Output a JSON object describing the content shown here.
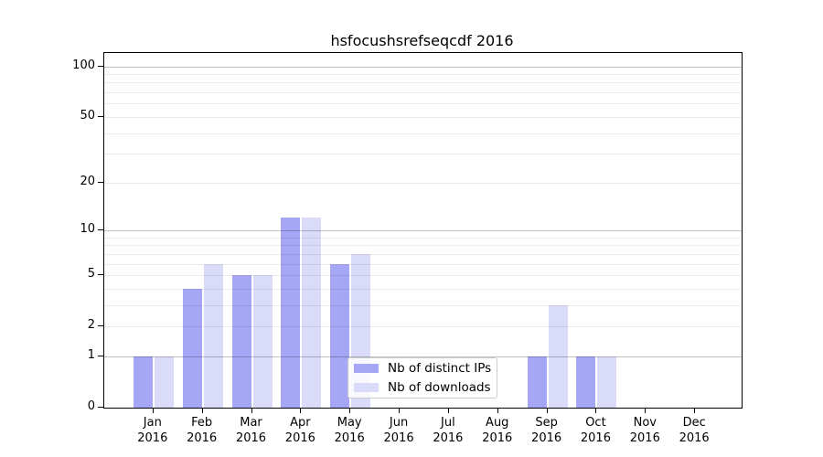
{
  "chart_data": {
    "type": "bar",
    "title": "hsfocushsrefseqcdf 2016",
    "year_label": "2016",
    "categories": [
      "Jan",
      "Feb",
      "Mar",
      "Apr",
      "May",
      "Jun",
      "Jul",
      "Aug",
      "Sep",
      "Oct",
      "Nov",
      "Dec"
    ],
    "series": [
      {
        "name": "Nb of distinct IPs",
        "color": "#a6a6f7",
        "values": [
          1,
          4,
          5,
          12,
          6,
          0,
          0,
          0,
          1,
          1,
          0,
          0
        ]
      },
      {
        "name": "Nb of downloads",
        "color": "#dadaf9",
        "values": [
          1,
          6,
          5,
          12,
          7,
          0,
          0,
          0,
          3,
          1,
          0,
          0
        ]
      }
    ],
    "y_axis": {
      "scale": "log1p",
      "tick_values": [
        0,
        1,
        2,
        5,
        10,
        20,
        50,
        100
      ],
      "major_grid_values": [
        1,
        10,
        100
      ],
      "minor_grid_values": [
        2,
        3,
        4,
        5,
        6,
        7,
        8,
        9,
        20,
        30,
        40,
        50,
        60,
        70,
        80,
        90
      ],
      "ylim": [
        0,
        120
      ]
    },
    "x_axis": {
      "label_line2": "2016"
    },
    "legend": {
      "position": "bottom-center"
    },
    "grid": "horizontal",
    "colors": {
      "axis": "#000000",
      "major_grid": "#c2c2c2",
      "minor_grid": "#ebebeb"
    }
  }
}
